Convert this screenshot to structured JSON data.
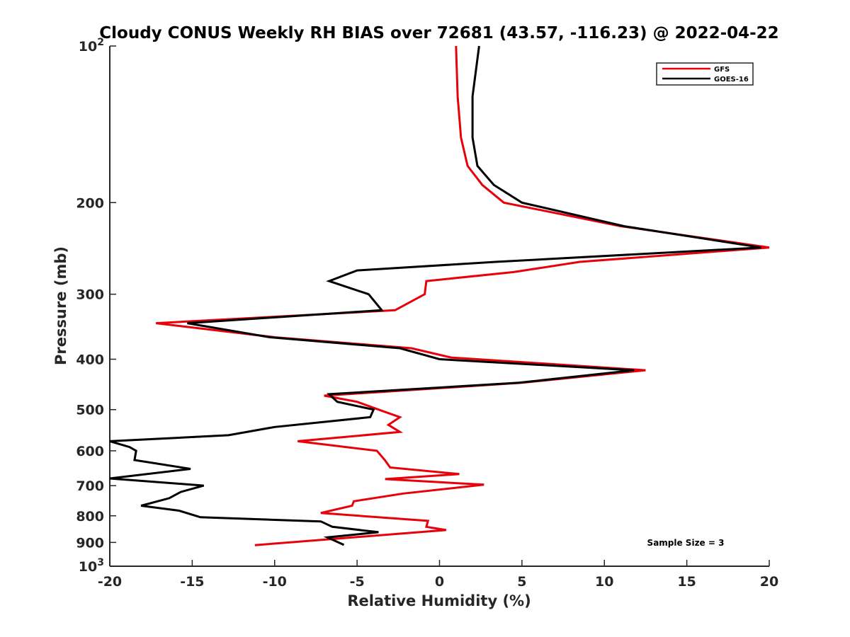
{
  "chart_data": {
    "type": "line",
    "title": "Cloudy CONUS Weekly RH BIAS over 72681 (43.57, -116.23) @ 2022-04-22",
    "xlabel": "Relative Humidity (%)",
    "ylabel": "Pressure (mb)",
    "xlim": [
      -20,
      20
    ],
    "ylim": [
      100,
      1000
    ],
    "y_scale": "log",
    "y_reversed": true,
    "x_ticks": [
      -20,
      -15,
      -10,
      -5,
      0,
      5,
      10,
      15,
      20
    ],
    "x_tick_labels": [
      "-20",
      "-15",
      "-10",
      "-5",
      "0",
      "5",
      "10",
      "15",
      "20"
    ],
    "y_ticks": [
      100,
      200,
      300,
      400,
      500,
      600,
      700,
      800,
      900,
      1000
    ],
    "y_tick_labels": [
      {
        "base": "10",
        "exp": "2"
      },
      {
        "base": "200",
        "exp": ""
      },
      {
        "base": "300",
        "exp": ""
      },
      {
        "base": "400",
        "exp": ""
      },
      {
        "base": "500",
        "exp": ""
      },
      {
        "base": "600",
        "exp": ""
      },
      {
        "base": "700",
        "exp": ""
      },
      {
        "base": "800",
        "exp": ""
      },
      {
        "base": "900",
        "exp": ""
      },
      {
        "base": "10",
        "exp": "3"
      }
    ],
    "grid": false,
    "legend_position": "top-right",
    "annotation": "Sample Size = 3",
    "series": [
      {
        "name": "GFS",
        "color": "#e8000b",
        "points": [
          [
            1.0,
            100
          ],
          [
            1.1,
            125
          ],
          [
            1.3,
            150
          ],
          [
            1.7,
            170
          ],
          [
            2.6,
            185
          ],
          [
            3.9,
            200
          ],
          [
            11.0,
            222
          ],
          [
            20.0,
            244
          ],
          [
            8.5,
            260
          ],
          [
            4.5,
            272
          ],
          [
            -0.8,
            283
          ],
          [
            -0.9,
            300
          ],
          [
            -2.7,
            322
          ],
          [
            -17.2,
            341
          ],
          [
            -10.0,
            363
          ],
          [
            -1.7,
            381
          ],
          [
            0.7,
            397
          ],
          [
            12.5,
            420
          ],
          [
            5.0,
            444
          ],
          [
            -7.0,
            470
          ],
          [
            -5.0,
            483
          ],
          [
            -3.7,
            500
          ],
          [
            -2.4,
            517
          ],
          [
            -3.1,
            535
          ],
          [
            -2.4,
            552
          ],
          [
            -8.6,
            575
          ],
          [
            -3.8,
            600
          ],
          [
            -3.3,
            626
          ],
          [
            -3.0,
            646
          ],
          [
            1.2,
            665
          ],
          [
            -3.3,
            680
          ],
          [
            2.7,
            697
          ],
          [
            -2.2,
            725
          ],
          [
            -5.2,
            750
          ],
          [
            -5.3,
            765
          ],
          [
            -7.2,
            790
          ],
          [
            -0.7,
            818
          ],
          [
            -0.8,
            840
          ],
          [
            0.4,
            852
          ],
          [
            -11.2,
            911
          ]
        ]
      },
      {
        "name": "GOES-16",
        "color": "#000000",
        "points": [
          [
            2.4,
            100
          ],
          [
            2.0,
            125
          ],
          [
            2.0,
            150
          ],
          [
            2.3,
            170
          ],
          [
            3.3,
            185
          ],
          [
            5.0,
            200
          ],
          [
            11.2,
            222
          ],
          [
            19.5,
            244
          ],
          [
            3.4,
            260
          ],
          [
            -5.0,
            270
          ],
          [
            -6.7,
            283
          ],
          [
            -4.3,
            300
          ],
          [
            -3.5,
            322
          ],
          [
            -15.3,
            341
          ],
          [
            -10.3,
            363
          ],
          [
            -2.4,
            381
          ],
          [
            0.0,
            400
          ],
          [
            11.8,
            420
          ],
          [
            4.8,
            444
          ],
          [
            -6.7,
            467
          ],
          [
            -6.2,
            483
          ],
          [
            -4.0,
            500
          ],
          [
            -4.2,
            517
          ],
          [
            -10.0,
            540
          ],
          [
            -12.8,
            560
          ],
          [
            -20.0,
            575
          ],
          [
            -18.8,
            590
          ],
          [
            -18.4,
            600
          ],
          [
            -18.5,
            625
          ],
          [
            -15.1,
            650
          ],
          [
            -20.0,
            678
          ],
          [
            -14.3,
            700
          ],
          [
            -15.7,
            720
          ],
          [
            -16.4,
            740
          ],
          [
            -18.1,
            765
          ],
          [
            -15.8,
            782
          ],
          [
            -14.5,
            805
          ],
          [
            -7.2,
            820
          ],
          [
            -6.5,
            840
          ],
          [
            -3.7,
            860
          ],
          [
            -6.8,
            880
          ],
          [
            -5.8,
            910
          ]
        ]
      }
    ]
  }
}
